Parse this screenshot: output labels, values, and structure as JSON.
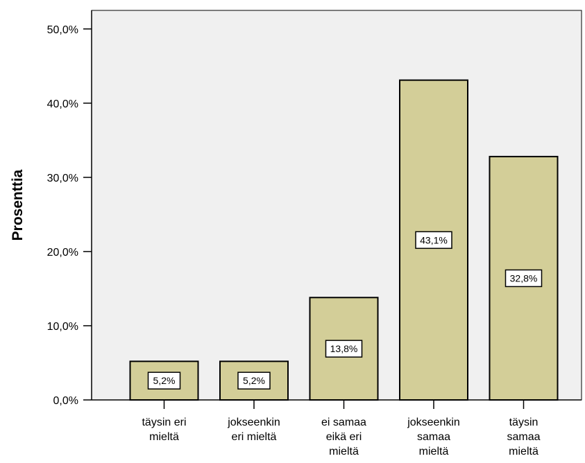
{
  "chart_data": {
    "type": "bar",
    "title": "",
    "xlabel": "",
    "ylabel": "Prosenttia",
    "categories": [
      [
        "täysin eri",
        "mieltä"
      ],
      [
        "jokseenkin",
        "eri mieltä"
      ],
      [
        "ei samaa",
        "eikä eri",
        "mieltä"
      ],
      [
        "jokseenkin",
        "samaa",
        "mieltä"
      ],
      [
        "täysin",
        "samaa",
        "mieltä"
      ]
    ],
    "values": [
      5.2,
      5.2,
      13.8,
      43.1,
      32.8
    ],
    "value_labels": [
      "5,2%",
      "5,2%",
      "13,8%",
      "43,1%",
      "32,8%"
    ],
    "ylim": [
      0,
      52.5
    ],
    "yticks": [
      0,
      10,
      20,
      30,
      40,
      50
    ],
    "ytick_labels": [
      "0,0%",
      "10,0%",
      "20,0%",
      "30,0%",
      "40,0%",
      "50,0%"
    ],
    "grid": false,
    "colors": {
      "bar_fill": "#d3ce98",
      "bar_stroke": "#000000",
      "plot_background": "#f0f0f0",
      "label_box": "#ffffff"
    }
  }
}
